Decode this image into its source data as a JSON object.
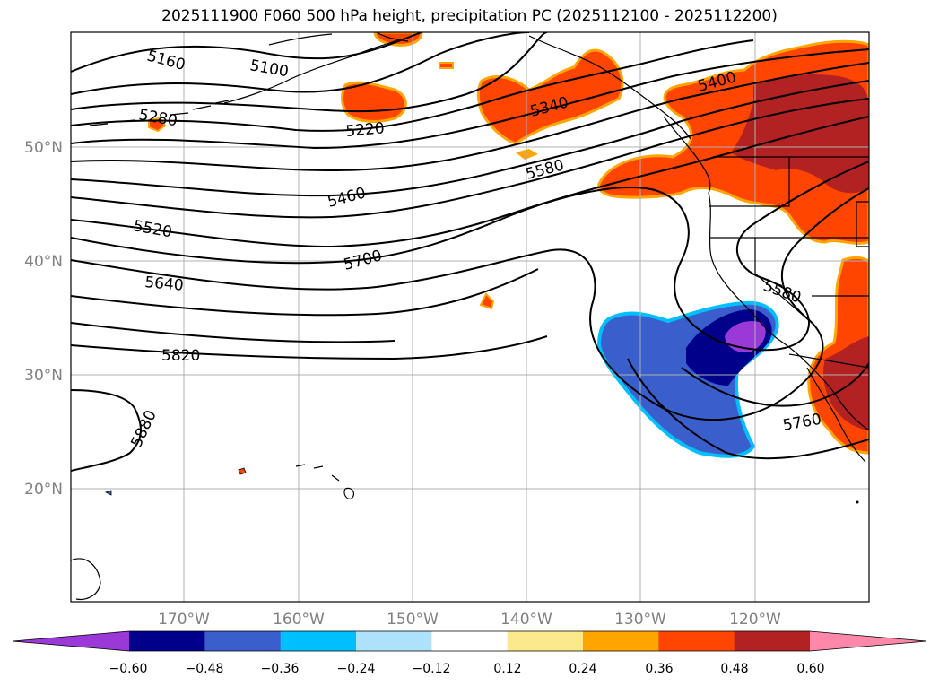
{
  "title": "2025111900 F060 500 hPa height, precipitation PC (2025112100 - 2025112200)",
  "lon_labels": [
    "170°W",
    "160°W",
    "150°W",
    "140°W",
    "130°W",
    "120°W"
  ],
  "lat_labels": [
    "50°N",
    "40°N",
    "30°N",
    "20°N"
  ],
  "contour_labels": [
    "5160",
    "5100",
    "5280",
    "5220",
    "5340",
    "5400",
    "5460",
    "5580",
    "5520",
    "5700",
    "5640",
    "5580",
    "5820",
    "5760",
    "5880"
  ],
  "colorbar": {
    "tick_labels": [
      "−0.60",
      "−0.48",
      "−0.36",
      "−0.24",
      "−0.12",
      "0.12",
      "0.24",
      "0.36",
      "0.48",
      "0.60"
    ],
    "colors": [
      "#9a38d8",
      "#00008b",
      "#3a5fcd",
      "#00bfff",
      "#aee2fa",
      "#ffffff",
      "#fce98b",
      "#ffa500",
      "#ff4500",
      "#b22222",
      "#ff88aa"
    ]
  }
}
